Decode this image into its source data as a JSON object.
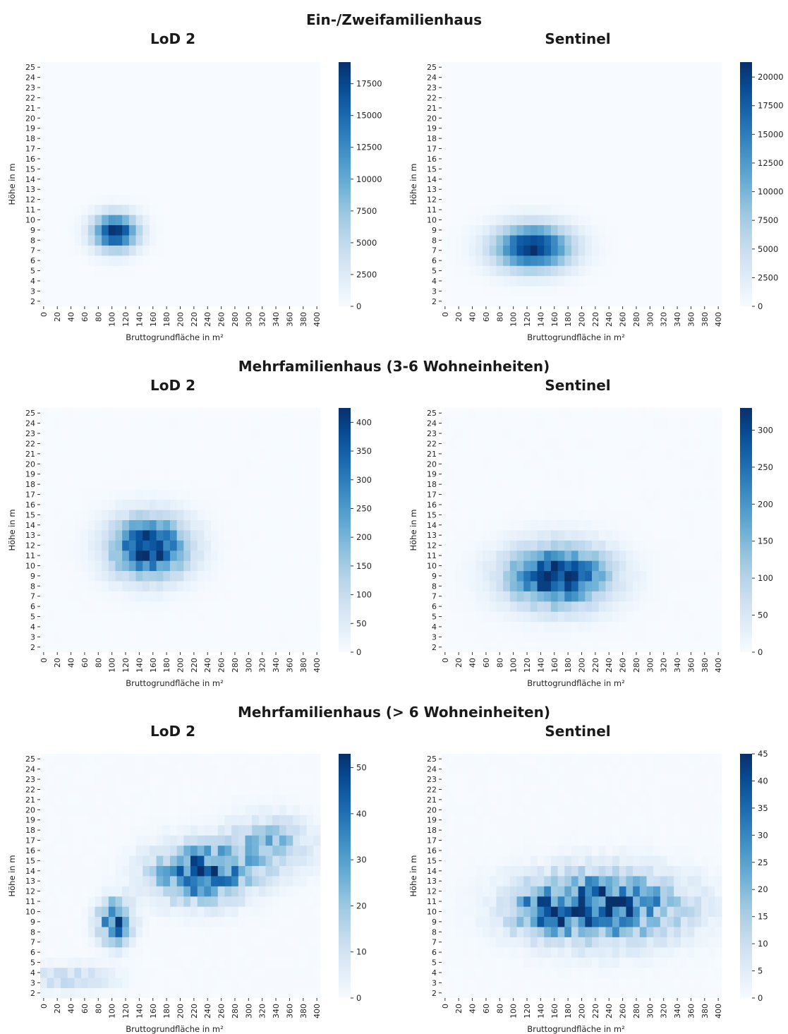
{
  "groups": [
    {
      "title": "Ein-/Zweifamilienhaus",
      "lod_label": "LoD 2",
      "sentinel_label": "Sentinel"
    },
    {
      "title": "Mehrfamilienhaus (3-6 Wohneinheiten)",
      "lod_label": "LoD 2",
      "sentinel_label": "Sentinel"
    },
    {
      "title": "Mehrfamilienhaus (> 6 Wohneinheiten)",
      "lod_label": "LoD 2",
      "sentinel_label": "Sentinel"
    }
  ],
  "chart_data": [
    {
      "type": "heatmap",
      "group": "Ein-/Zweifamilienhaus",
      "title": "LoD 2",
      "xlabel": "Bruttogrundfläche in m²",
      "ylabel": "Höhe in m",
      "x_ticks": [
        "0",
        "20",
        "40",
        "60",
        "80",
        "100",
        "120",
        "140",
        "160",
        "180",
        "200",
        "220",
        "240",
        "260",
        "280",
        "300",
        "320",
        "340",
        "360",
        "380",
        "400"
      ],
      "y_ticks": [
        "2",
        "3",
        "4",
        "5",
        "6",
        "7",
        "8",
        "9",
        "10",
        "11",
        "12",
        "13",
        "14",
        "15",
        "16",
        "17",
        "18",
        "19",
        "20",
        "21",
        "22",
        "23",
        "24",
        "25"
      ],
      "colorbar": {
        "min": 0,
        "max": 19200,
        "ticks": [
          0,
          2500,
          5000,
          7500,
          10000,
          12500,
          15000,
          17500
        ]
      },
      "hotspots": [
        {
          "x": 105,
          "y": 8.8,
          "sx": 22,
          "sy": 1.2,
          "peak": 19200
        }
      ],
      "noise": 0.05,
      "seed": 11
    },
    {
      "type": "heatmap",
      "group": "Ein-/Zweifamilienhaus",
      "title": "Sentinel",
      "xlabel": "Bruttogrundfläche in m²",
      "ylabel": "Höhe in m",
      "x_ticks": [
        "0",
        "20",
        "40",
        "60",
        "80",
        "100",
        "120",
        "140",
        "160",
        "180",
        "200",
        "220",
        "240",
        "260",
        "280",
        "300",
        "320",
        "340",
        "360",
        "380",
        "400"
      ],
      "y_ticks": [
        "2",
        "3",
        "4",
        "5",
        "6",
        "7",
        "8",
        "9",
        "10",
        "11",
        "12",
        "13",
        "14",
        "15",
        "16",
        "17",
        "18",
        "19",
        "20",
        "21",
        "22",
        "23",
        "24",
        "25"
      ],
      "colorbar": {
        "min": 0,
        "max": 21300,
        "ticks": [
          0,
          2500,
          5000,
          7500,
          10000,
          12500,
          15000,
          17500,
          20000
        ]
      },
      "hotspots": [
        {
          "x": 128,
          "y": 7.3,
          "sx": 38,
          "sy": 1.5,
          "peak": 21300
        }
      ],
      "noise": 0.05,
      "seed": 23
    },
    {
      "type": "heatmap",
      "group": "Mehrfamilienhaus (3-6 Wohneinheiten)",
      "title": "LoD 2",
      "xlabel": "Bruttogrundfläche in m²",
      "ylabel": "Höhe in m",
      "x_ticks": [
        "0",
        "20",
        "40",
        "60",
        "80",
        "100",
        "120",
        "140",
        "160",
        "180",
        "200",
        "220",
        "240",
        "260",
        "280",
        "300",
        "320",
        "340",
        "360",
        "380",
        "400"
      ],
      "y_ticks": [
        "2",
        "3",
        "4",
        "5",
        "6",
        "7",
        "8",
        "9",
        "10",
        "11",
        "12",
        "13",
        "14",
        "15",
        "16",
        "17",
        "18",
        "19",
        "20",
        "21",
        "22",
        "23",
        "24",
        "25"
      ],
      "colorbar": {
        "min": 0,
        "max": 425,
        "ticks": [
          0,
          50,
          100,
          150,
          200,
          250,
          300,
          350,
          400
        ]
      },
      "hotspots": [
        {
          "x": 155,
          "y": 11.8,
          "sx": 38,
          "sy": 2.0,
          "peak": 425
        }
      ],
      "noise": 0.2,
      "seed": 37
    },
    {
      "type": "heatmap",
      "group": "Mehrfamilienhaus (3-6 Wohneinheiten)",
      "title": "Sentinel",
      "xlabel": "Bruttogrundfläche in m²",
      "ylabel": "Höhe in m",
      "x_ticks": [
        "0",
        "20",
        "40",
        "60",
        "80",
        "100",
        "120",
        "140",
        "160",
        "180",
        "200",
        "220",
        "240",
        "260",
        "280",
        "300",
        "320",
        "340",
        "360",
        "380",
        "400"
      ],
      "y_ticks": [
        "2",
        "3",
        "4",
        "5",
        "6",
        "7",
        "8",
        "9",
        "10",
        "11",
        "12",
        "13",
        "14",
        "15",
        "16",
        "17",
        "18",
        "19",
        "20",
        "21",
        "22",
        "23",
        "24",
        "25"
      ],
      "colorbar": {
        "min": 0,
        "max": 330,
        "ticks": [
          0,
          50,
          100,
          150,
          200,
          250,
          300
        ]
      },
      "hotspots": [
        {
          "x": 165,
          "y": 9.0,
          "sx": 50,
          "sy": 2.0,
          "peak": 330
        }
      ],
      "noise": 0.22,
      "seed": 51
    },
    {
      "type": "heatmap",
      "group": "Mehrfamilienhaus (> 6 Wohneinheiten)",
      "title": "LoD 2",
      "xlabel": "Bruttogrundfläche in m²",
      "ylabel": "Höhe in m",
      "x_ticks": [
        "0",
        "20",
        "40",
        "60",
        "80",
        "100",
        "120",
        "140",
        "160",
        "180",
        "200",
        "220",
        "240",
        "260",
        "280",
        "300",
        "320",
        "340",
        "360",
        "380",
        "400"
      ],
      "y_ticks": [
        "2",
        "3",
        "4",
        "5",
        "6",
        "7",
        "8",
        "9",
        "10",
        "11",
        "12",
        "13",
        "14",
        "15",
        "16",
        "17",
        "18",
        "19",
        "20",
        "21",
        "22",
        "23",
        "24",
        "25"
      ],
      "colorbar": {
        "min": 0,
        "max": 53,
        "ticks": [
          0,
          10,
          20,
          30,
          40,
          50
        ]
      },
      "hotspots": [
        {
          "x": 105,
          "y": 9.0,
          "sx": 16,
          "sy": 1.4,
          "peak": 46
        },
        {
          "x": 230,
          "y": 13.8,
          "sx": 45,
          "sy": 1.8,
          "peak": 48
        },
        {
          "x": 330,
          "y": 16.5,
          "sx": 40,
          "sy": 1.8,
          "peak": 22
        },
        {
          "x": 40,
          "y": 3.5,
          "sx": 40,
          "sy": 0.8,
          "peak": 14
        }
      ],
      "noise": 0.45,
      "seed": 67
    },
    {
      "type": "heatmap",
      "group": "Mehrfamilienhaus (> 6 Wohneinheiten)",
      "title": "Sentinel",
      "xlabel": "Bruttogrundfläche in m²",
      "ylabel": "Höhe in m",
      "x_ticks": [
        "0",
        "20",
        "40",
        "60",
        "80",
        "100",
        "120",
        "140",
        "160",
        "180",
        "200",
        "220",
        "240",
        "260",
        "280",
        "300",
        "320",
        "340",
        "360",
        "380",
        "400"
      ],
      "y_ticks": [
        "2",
        "3",
        "4",
        "5",
        "6",
        "7",
        "8",
        "9",
        "10",
        "11",
        "12",
        "13",
        "14",
        "15",
        "16",
        "17",
        "18",
        "19",
        "20",
        "21",
        "22",
        "23",
        "24",
        "25"
      ],
      "colorbar": {
        "min": 0,
        "max": 45,
        "ticks": [
          0,
          5,
          10,
          15,
          20,
          25,
          30,
          35,
          40,
          45
        ]
      },
      "hotspots": [
        {
          "x": 230,
          "y": 10.5,
          "sx": 75,
          "sy": 2.2,
          "peak": 40
        },
        {
          "x": 140,
          "y": 10.0,
          "sx": 30,
          "sy": 1.5,
          "peak": 18
        }
      ],
      "noise": 0.5,
      "seed": 83
    }
  ]
}
